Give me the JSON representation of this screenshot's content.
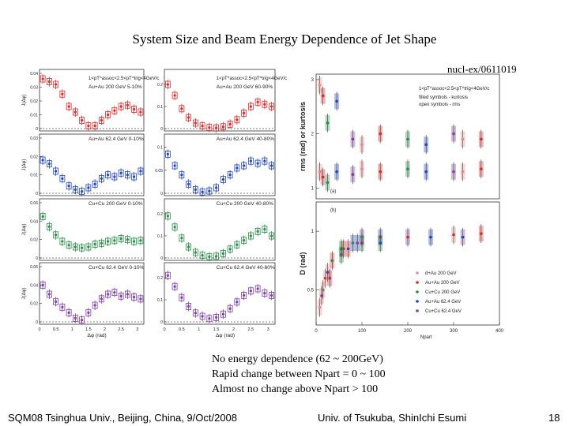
{
  "slide": {
    "title": "System Size and Beam Energy Dependence of Jet Shape",
    "reference": "nucl-ex/0611019",
    "notes": [
      "No energy dependence (62 ~ 200GeV)",
      "Rapid change between Npart = 0 ~ 100",
      "Almost no change above Npart > 100"
    ],
    "footer_left": "SQM08 Tsinghua Univ., Beijing, China, 9/Oct/2008",
    "footer_center": "Univ. of Tsukuba, ShinIchi Esumi",
    "page_number": "18"
  },
  "chart_data": [
    {
      "type": "scatter",
      "title": "",
      "xlabel": "Δφ (rad)",
      "ylabel": "J(Δφ)",
      "header": "1<pT^assoc<2.5<pT^trig<4GeV/c",
      "x_ticks": [
        "0",
        "0.5",
        "1",
        "1.5",
        "2",
        "2.5",
        "3"
      ],
      "panels": [
        {
          "label": "Au+Au 200 GeV 5-10%",
          "color": "#d22c2c",
          "y_ticks": [
            "0",
            "0.01",
            "0.02",
            "0.03",
            "0.04"
          ],
          "ylim": [
            0,
            0.04
          ],
          "x": [
            0.1,
            0.3,
            0.5,
            0.7,
            0.9,
            1.1,
            1.3,
            1.5,
            1.7,
            1.9,
            2.1,
            2.3,
            2.5,
            2.7,
            2.9,
            3.1
          ],
          "y": [
            0.036,
            0.034,
            0.032,
            0.025,
            0.016,
            0.012,
            0.006,
            0.002,
            0.002,
            0.006,
            0.01,
            0.013,
            0.016,
            0.017,
            0.014,
            0.012
          ]
        },
        {
          "label": "Au+Au 62.4 GeV 0-10%",
          "color": "#2346b4",
          "y_ticks": [
            "0",
            "0.01",
            "0.02",
            "0.03"
          ],
          "ylim": [
            0,
            0.03
          ],
          "x": [
            0.1,
            0.3,
            0.5,
            0.7,
            0.9,
            1.1,
            1.3,
            1.5,
            1.7,
            1.9,
            2.1,
            2.3,
            2.5,
            2.7,
            2.9,
            3.1
          ],
          "y": [
            0.018,
            0.016,
            0.012,
            0.008,
            0.004,
            0.002,
            0.001,
            0.003,
            0.005,
            0.008,
            0.01,
            0.009,
            0.011,
            0.01,
            0.009,
            0.012
          ]
        },
        {
          "label": "Cu+Cu 200 GeV 0-10%",
          "color": "#2a8a4a",
          "y_ticks": [
            "0",
            "0.02",
            "0.04",
            "0.06"
          ],
          "ylim": [
            0,
            0.06
          ],
          "x": [
            0.1,
            0.3,
            0.5,
            0.7,
            0.9,
            1.1,
            1.3,
            1.5,
            1.7,
            1.9,
            2.1,
            2.3,
            2.5,
            2.7,
            2.9,
            3.1
          ],
          "y": [
            0.045,
            0.034,
            0.025,
            0.018,
            0.014,
            0.012,
            0.011,
            0.012,
            0.015,
            0.016,
            0.018,
            0.019,
            0.021,
            0.02,
            0.018,
            0.019
          ]
        },
        {
          "label": "Cu+Cu 62.4 GeV 0-10%",
          "color": "#7d3fa0",
          "y_ticks": [
            "0",
            "0.02",
            "0.04",
            "0.06"
          ],
          "ylim": [
            0,
            0.06
          ],
          "x": [
            0.1,
            0.3,
            0.5,
            0.7,
            0.9,
            1.1,
            1.3,
            1.5,
            1.7,
            1.9,
            2.1,
            2.3,
            2.5,
            2.7,
            2.9,
            3.1
          ],
          "y": [
            0.04,
            0.03,
            0.022,
            0.016,
            0.01,
            0.004,
            0.002,
            0.01,
            0.018,
            0.025,
            0.03,
            0.032,
            0.028,
            0.03,
            0.027,
            0.025
          ]
        }
      ]
    },
    {
      "type": "scatter",
      "title": "",
      "xlabel": "Δφ (rad)",
      "header": "1<pT^assoc<2.5<pT^trig<4GeV/c",
      "x_ticks": [
        "0",
        "0.5",
        "1",
        "1.5",
        "2",
        "2.5",
        "3"
      ],
      "panels": [
        {
          "label": "Au+Au 200 GeV 60-90%",
          "color": "#d22c2c",
          "y_ticks": [
            "0",
            "0.1",
            "0.2"
          ],
          "ylim": [
            0,
            0.25
          ],
          "x": [
            0.1,
            0.3,
            0.5,
            0.7,
            0.9,
            1.1,
            1.3,
            1.5,
            1.7,
            1.9,
            2.1,
            2.3,
            2.5,
            2.7,
            2.9,
            3.1
          ],
          "y": [
            0.2,
            0.15,
            0.09,
            0.05,
            0.025,
            0.012,
            0.005,
            0.003,
            0.008,
            0.02,
            0.04,
            0.07,
            0.1,
            0.12,
            0.11,
            0.1
          ]
        },
        {
          "label": "Au+Au 62.4 GeV 40-80%",
          "color": "#2346b4",
          "y_ticks": [
            "0",
            "0.05",
            "0.1"
          ],
          "ylim": [
            0,
            0.12
          ],
          "x": [
            0.1,
            0.3,
            0.5,
            0.7,
            0.9,
            1.1,
            1.3,
            1.5,
            1.7,
            1.9,
            2.1,
            2.3,
            2.5,
            2.7,
            2.9,
            3.1
          ],
          "y": [
            0.085,
            0.06,
            0.04,
            0.02,
            0.008,
            0.003,
            0.005,
            0.012,
            0.03,
            0.04,
            0.055,
            0.06,
            0.07,
            0.065,
            0.07,
            0.06
          ]
        },
        {
          "label": "Cu+Cu 200 GeV 40-80%",
          "color": "#2a8a4a",
          "y_ticks": [
            "0",
            "0.1",
            "0.2"
          ],
          "ylim": [
            0,
            0.25
          ],
          "x": [
            0.1,
            0.3,
            0.5,
            0.7,
            0.9,
            1.1,
            1.3,
            1.5,
            1.7,
            1.9,
            2.1,
            2.3,
            2.5,
            2.7,
            2.9,
            3.1
          ],
          "y": [
            0.19,
            0.14,
            0.09,
            0.05,
            0.025,
            0.012,
            0.006,
            0.008,
            0.02,
            0.04,
            0.06,
            0.08,
            0.1,
            0.12,
            0.13,
            0.1
          ]
        },
        {
          "label": "Cu+Cu 62.4 GeV 40-80%",
          "color": "#7d3fa0",
          "y_ticks": [
            "0",
            "0.1",
            "0.2"
          ],
          "ylim": [
            0,
            0.25
          ],
          "x": [
            0.1,
            0.3,
            0.5,
            0.7,
            0.9,
            1.1,
            1.3,
            1.5,
            1.7,
            1.9,
            2.1,
            2.3,
            2.5,
            2.7,
            2.9,
            3.1
          ],
          "y": [
            0.21,
            0.16,
            0.11,
            0.07,
            0.04,
            0.025,
            0.015,
            0.02,
            0.035,
            0.06,
            0.09,
            0.12,
            0.14,
            0.15,
            0.13,
            0.12
          ]
        }
      ]
    },
    {
      "type": "scatter",
      "title": "",
      "xlabel": "Npart",
      "x_ticks": [
        "0",
        "100",
        "200",
        "300",
        "400"
      ],
      "xlim": [
        0,
        400
      ],
      "header": "1<pT^assoc<2.5<pT^trig<4GeV/c",
      "legend_text": [
        "filled symbols - kurtosis",
        "open symbols - rms"
      ],
      "panels": [
        {
          "label": "(a)",
          "ylabel": "rms (rad) or kurtosis",
          "y_ticks": [
            "1",
            "2",
            "3"
          ],
          "ylim": [
            0.8,
            3.1
          ],
          "series": [
            {
              "name": "kurtosis",
              "x": [
                8,
                15,
                25,
                45,
                80,
                100,
                140,
                200,
                240,
                300,
                320,
                360
              ],
              "y": [
                2.9,
                2.7,
                2.2,
                2.6,
                1.9,
                1.8,
                2.0,
                1.9,
                1.8,
                2.0,
                1.9,
                1.9
              ]
            },
            {
              "name": "rms",
              "x": [
                8,
                15,
                25,
                45,
                80,
                100,
                140,
                200,
                240,
                300,
                320,
                360
              ],
              "y": [
                1.3,
                1.2,
                1.1,
                1.3,
                1.25,
                1.35,
                1.3,
                1.35,
                1.3,
                1.3,
                1.3,
                1.35
              ]
            }
          ]
        },
        {
          "label": "(b)",
          "ylabel": "D (rad)",
          "y_ticks": [
            "0.5",
            "1"
          ],
          "ylim": [
            0.2,
            1.25
          ],
          "legend": [
            {
              "name": "d+Au 200 GeV",
              "color": "#e08a8a"
            },
            {
              "name": "Au+Au 200 GeV",
              "color": "#d22c2c"
            },
            {
              "name": "Cu+Cu 200 GeV",
              "color": "#2a8a4a"
            },
            {
              "name": "Au+Au 62.4 GeV",
              "color": "#2346b4"
            },
            {
              "name": "Cu+Cu 62.4 GeV",
              "color": "#7d3fa0"
            }
          ],
          "series": [
            {
              "name": "d+Au 200 GeV",
              "x": [
                8
              ],
              "y": [
                0.35
              ]
            },
            {
              "name": "Au+Au 200 GeV",
              "x": [
                20,
                60,
                100,
                140,
                200,
                300,
                360
              ],
              "y": [
                0.6,
                0.85,
                0.9,
                0.95,
                0.95,
                0.97,
                0.98
              ]
            },
            {
              "name": "Cu+Cu 200 GeV",
              "x": [
                15,
                35,
                55,
                80,
                100
              ],
              "y": [
                0.5,
                0.75,
                0.85,
                0.9,
                0.95
              ]
            },
            {
              "name": "Au+Au 62.4 GeV",
              "x": [
                25,
                70,
                140,
                250,
                320
              ],
              "y": [
                0.65,
                0.85,
                0.9,
                0.95,
                0.95
              ]
            },
            {
              "name": "Cu+Cu 62.4 GeV",
              "x": [
                12,
                30,
                55,
                90
              ],
              "y": [
                0.45,
                0.6,
                0.8,
                0.9
              ]
            }
          ]
        }
      ]
    }
  ]
}
